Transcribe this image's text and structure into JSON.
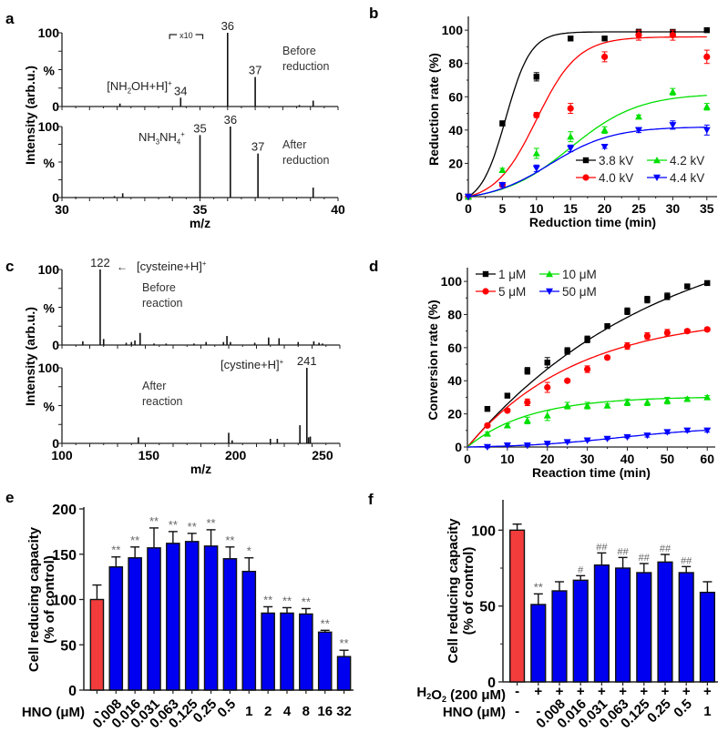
{
  "chart_data": [
    {
      "id": "a",
      "type": "bar",
      "subtype": "mass-spectrum",
      "panel_label": "a",
      "xlabel": "m/z",
      "ylabel": "Intensity (arb.u.)",
      "xlim": [
        30,
        40
      ],
      "xticks": [
        30,
        35,
        40
      ],
      "ytick_labels": [
        "0",
        "%",
        "100"
      ],
      "spectra": [
        {
          "name": "Before reduction",
          "annotation": [
            "Before",
            "reduction"
          ],
          "peaks": [
            {
              "mz": 32.1,
              "i": 4
            },
            {
              "mz": 34.3,
              "i": 12
            },
            {
              "mz": 36.0,
              "i": 100
            },
            {
              "mz": 37.0,
              "i": 40
            },
            {
              "mz": 38.6,
              "i": 2
            },
            {
              "mz": 39.1,
              "i": 8
            }
          ],
          "peak_labels": [
            {
              "mz": 34.3,
              "text": "34",
              "above": 12
            },
            {
              "mz": 36.0,
              "text": "36",
              "above": 100
            },
            {
              "mz": 37.0,
              "text": "37",
              "above": 40
            }
          ],
          "species_label": "[NH2OH+H]+",
          "magnification": "x10",
          "magnification_range": [
            33.9,
            35.1
          ]
        },
        {
          "name": "After reduction",
          "annotation": [
            "After",
            "reduction"
          ],
          "peaks": [
            {
              "mz": 30.5,
              "i": 1
            },
            {
              "mz": 31.9,
              "i": 2
            },
            {
              "mz": 32.2,
              "i": 6
            },
            {
              "mz": 33.9,
              "i": 2
            },
            {
              "mz": 35.0,
              "i": 88
            },
            {
              "mz": 36.1,
              "i": 100
            },
            {
              "mz": 37.1,
              "i": 62
            },
            {
              "mz": 39.1,
              "i": 14
            }
          ],
          "peak_labels": [
            {
              "mz": 35.0,
              "text": "35",
              "above": 88
            },
            {
              "mz": 36.1,
              "text": "36",
              "above": 100
            },
            {
              "mz": 37.1,
              "text": "37",
              "above": 62
            }
          ],
          "species_label": "NH3NH4+"
        }
      ]
    },
    {
      "id": "b",
      "type": "scatter",
      "panel_label": "b",
      "xlabel": "Reduction time (min)",
      "ylabel": "Reduction rate (%)",
      "xlim": [
        0,
        36.5
      ],
      "ylim": [
        0,
        105
      ],
      "xticks": [
        0,
        5,
        10,
        15,
        20,
        25,
        30,
        35
      ],
      "yticks": [
        0,
        20,
        40,
        60,
        80,
        100
      ],
      "legend_position": "bottom-right",
      "fit": "sigmoidal",
      "series": [
        {
          "name": "3.8 kV",
          "color": "#000000",
          "marker": "square",
          "x": [
            0,
            5,
            10,
            15,
            20,
            25,
            30,
            35
          ],
          "y": [
            0,
            44,
            72,
            95,
            95,
            99,
            99,
            100
          ],
          "err": [
            0,
            1.5,
            2.5,
            1,
            1,
            1.5,
            1,
            0.5
          ],
          "fit_params": {
            "max": 99,
            "k": 0.55,
            "t0": 5.5
          }
        },
        {
          "name": "4.0 kV",
          "color": "#ff0000",
          "marker": "circle",
          "x": [
            0,
            5,
            10,
            15,
            20,
            25,
            30,
            35
          ],
          "y": [
            0,
            7,
            49,
            53,
            84,
            97,
            97,
            84
          ],
          "err": [
            0,
            1,
            1.5,
            3,
            3,
            3,
            3,
            4
          ],
          "fit_params": {
            "max": 96,
            "k": 0.33,
            "t0": 10
          }
        },
        {
          "name": "4.2 kV",
          "color": "#00e000",
          "marker": "triangle-up",
          "x": [
            0,
            5,
            10,
            15,
            20,
            25,
            30,
            35
          ],
          "y": [
            0,
            16,
            26,
            36,
            40,
            48,
            63,
            54
          ],
          "err": [
            0,
            1,
            3,
            3,
            2,
            1,
            2,
            2
          ],
          "fit_params": {
            "max": 62,
            "k": 0.2,
            "t0": 15
          }
        },
        {
          "name": "4.4 kV",
          "color": "#0000ff",
          "marker": "triangle-down",
          "x": [
            0,
            5,
            10,
            15,
            20,
            25,
            30,
            35
          ],
          "y": [
            0,
            7,
            17,
            29,
            30,
            40,
            43,
            40
          ],
          "err": [
            0,
            1,
            2,
            2,
            1,
            1.5,
            2.5,
            3
          ],
          "fit_params": {
            "max": 42,
            "k": 0.22,
            "t0": 12
          }
        }
      ]
    },
    {
      "id": "c",
      "type": "bar",
      "subtype": "mass-spectrum",
      "panel_label": "c",
      "xlabel": "m/z",
      "ylabel": "Intensity (arb.u.)",
      "xlim": [
        100,
        260
      ],
      "xticks": [
        100,
        150,
        200,
        250
      ],
      "ytick_labels": [
        "0",
        "%",
        "100"
      ],
      "spectra": [
        {
          "name": "Before reaction",
          "annotation": [
            "Before",
            "reaction"
          ],
          "peaks": [
            {
              "mz": 112,
              "i": 5
            },
            {
              "mz": 122,
              "i": 100
            },
            {
              "mz": 124,
              "i": 8
            },
            {
              "mz": 137,
              "i": 3
            },
            {
              "mz": 140,
              "i": 4
            },
            {
              "mz": 142,
              "i": 6
            },
            {
              "mz": 145,
              "i": 16
            },
            {
              "mz": 153,
              "i": 2
            },
            {
              "mz": 160,
              "i": 2
            },
            {
              "mz": 176,
              "i": 2
            },
            {
              "mz": 183,
              "i": 4
            },
            {
              "mz": 193,
              "i": 4
            },
            {
              "mz": 195,
              "i": 12
            },
            {
              "mz": 197,
              "i": 4
            },
            {
              "mz": 211,
              "i": 3
            },
            {
              "mz": 219,
              "i": 10
            },
            {
              "mz": 225,
              "i": 9
            },
            {
              "mz": 236,
              "i": 4
            },
            {
              "mz": 245,
              "i": 5
            },
            {
              "mz": 248,
              "i": 3
            },
            {
              "mz": 250,
              "i": 2
            }
          ],
          "peak_labels": [
            {
              "mz": 122,
              "text": "122",
              "above": 100
            }
          ],
          "species_label": "[cysteine+H]+"
        },
        {
          "name": "After reaction",
          "annotation": [
            "After",
            "reaction"
          ],
          "peaks": [
            {
              "mz": 144,
              "i": 8
            },
            {
              "mz": 196,
              "i": 14
            },
            {
              "mz": 198,
              "i": 4
            },
            {
              "mz": 220,
              "i": 6
            },
            {
              "mz": 224,
              "i": 6
            },
            {
              "mz": 237,
              "i": 24
            },
            {
              "mz": 241,
              "i": 100
            },
            {
              "mz": 242,
              "i": 8
            },
            {
              "mz": 243,
              "i": 9
            }
          ],
          "peak_labels": [
            {
              "mz": 241,
              "text": "241",
              "above": 100
            }
          ],
          "species_label": "[cystine+H]+"
        }
      ]
    },
    {
      "id": "d",
      "type": "scatter",
      "panel_label": "d",
      "xlabel": "Reaction time (min)",
      "ylabel": "Conversion rate (%)",
      "xlim": [
        0,
        62
      ],
      "ylim": [
        0,
        105
      ],
      "xticks": [
        0,
        10,
        20,
        30,
        40,
        50,
        60
      ],
      "yticks": [
        0,
        20,
        40,
        60,
        80,
        100
      ],
      "legend_position": "top-left",
      "fit": "exponential-rise",
      "series": [
        {
          "name": "1 μM",
          "color": "#000000",
          "marker": "square",
          "x": [
            5,
            10,
            15,
            20,
            25,
            30,
            35,
            40,
            45,
            50,
            55,
            60
          ],
          "y": [
            23,
            31,
            46,
            51,
            58,
            65,
            73,
            82,
            89,
            91,
            97,
            99
          ],
          "err": [
            1,
            1,
            2,
            3,
            2,
            2,
            1,
            2,
            2,
            2,
            1,
            1
          ],
          "fit_params": {
            "max": 140,
            "k": 0.0205
          }
        },
        {
          "name": "5 μM",
          "color": "#ff0000",
          "marker": "circle",
          "x": [
            5,
            10,
            15,
            20,
            25,
            30,
            35,
            40,
            45,
            50,
            55,
            60
          ],
          "y": [
            13,
            22,
            27,
            36,
            40,
            47,
            54,
            61,
            67,
            69,
            70,
            71
          ],
          "err": [
            1,
            1,
            2,
            3,
            1,
            2,
            1,
            2,
            2,
            2,
            1,
            1
          ],
          "fit_params": {
            "max": 80,
            "k": 0.036
          }
        },
        {
          "name": "10 μM",
          "color": "#00e000",
          "marker": "triangle-up",
          "x": [
            5,
            10,
            15,
            20,
            25,
            30,
            35,
            40,
            45,
            50,
            55,
            60
          ],
          "y": [
            8,
            13,
            16,
            19,
            25,
            25,
            25,
            27,
            27,
            28,
            29,
            30
          ],
          "err": [
            1,
            1,
            2,
            3,
            2,
            2,
            1,
            2,
            2,
            2,
            1,
            1
          ],
          "fit_params": {
            "max": 30.5,
            "k": 0.065
          }
        },
        {
          "name": "50 μM",
          "color": "#0000ff",
          "marker": "triangle-down",
          "x": [
            5,
            10,
            15,
            20,
            25,
            30,
            35,
            40,
            45,
            50,
            55,
            60
          ],
          "y": [
            0,
            1,
            1,
            2,
            3,
            4,
            5,
            6,
            7,
            9,
            10,
            10
          ],
          "err": [
            0.5,
            0.5,
            0.5,
            0.5,
            0.5,
            0.5,
            0.5,
            0.5,
            1,
            1,
            1,
            1
          ],
          "fit_params": {
            "type": "sigmoid",
            "max": 12,
            "k": 0.08,
            "t0": 38
          }
        }
      ]
    },
    {
      "id": "e",
      "type": "bar",
      "panel_label": "e",
      "xlabel": "HNO (μM)",
      "ylabel": [
        "Cell reducing capacity",
        "(% of control)"
      ],
      "ylim": [
        0,
        200
      ],
      "yticks": [
        0,
        50,
        100,
        150,
        200
      ],
      "categories": [
        "-",
        "0.008",
        "0.016",
        "0.031",
        "0.063",
        "0.125",
        "0.25",
        "0.5",
        "1",
        "2",
        "4",
        "8",
        "16",
        "32"
      ],
      "rotated_categories": [
        "0.008",
        "0.016",
        "0.031",
        "0.063",
        "0.125",
        "0.25",
        "0.5"
      ],
      "values": [
        100,
        136,
        146,
        157,
        162,
        164,
        159,
        145,
        131,
        85,
        85,
        84,
        64,
        37
      ],
      "errors": [
        16,
        11,
        12,
        22,
        13,
        9,
        18,
        13,
        15,
        7,
        6,
        6,
        2,
        7
      ],
      "significance": [
        "",
        "**",
        "**",
        "**",
        "**",
        "**",
        "**",
        "**",
        "*",
        "**",
        "**",
        "**",
        "**",
        "**"
      ],
      "colors": {
        "control": "#f23c3c",
        "treated": "#0000f0"
      }
    },
    {
      "id": "f",
      "type": "bar",
      "panel_label": "f",
      "row_labels": {
        "h2o2": "H2O2 (200 μM)",
        "hno": "HNO (μM)"
      },
      "ylabel": [
        "Cell reducing capacity",
        "(% of control)"
      ],
      "ylim": [
        0,
        120
      ],
      "yticks": [
        0,
        50,
        100
      ],
      "h2o2": [
        "-",
        "+",
        "+",
        "+",
        "+",
        "+",
        "+",
        "+",
        "+",
        "+"
      ],
      "categories": [
        "-",
        "-",
        "0.008",
        "0.016",
        "0.031",
        "0.063",
        "0.125",
        "0.25",
        "0.5",
        "1"
      ],
      "rotated_categories": [
        "0.008",
        "0.016",
        "0.031",
        "0.063",
        "0.125",
        "0.25",
        "0.5"
      ],
      "values": [
        100,
        51,
        60,
        67,
        77,
        75,
        72,
        79,
        72,
        59
      ],
      "errors": [
        4,
        7,
        6,
        3,
        8,
        7,
        6,
        5,
        4,
        7
      ],
      "significance": [
        "",
        "**",
        "",
        "#",
        "##",
        "##",
        "##",
        "##",
        "##",
        ""
      ],
      "colors": {
        "control": "#f23c3c",
        "treated": "#0000f0"
      }
    }
  ]
}
